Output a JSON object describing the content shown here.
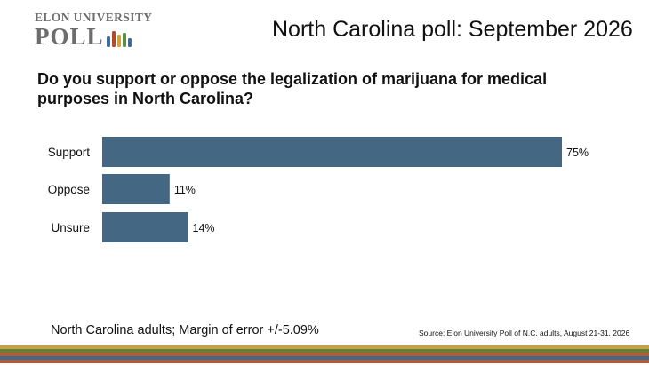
{
  "logo": {
    "line1": "ELON UNIVERSITY",
    "line2": "POLL"
  },
  "header": {
    "title": "North Carolina poll: September 2026"
  },
  "question": "Do you support or oppose the legalization of marijuana for medical purposes in North Carolina?",
  "chart_data": {
    "type": "bar",
    "orientation": "horizontal",
    "categories": [
      "Support",
      "Oppose",
      "Unsure"
    ],
    "values": [
      75,
      11,
      14
    ],
    "value_labels": [
      "75%",
      "11%",
      "14%"
    ],
    "xlim": [
      0,
      75
    ],
    "grid": false,
    "bar_color": "#446783"
  },
  "footer": {
    "note": "North Carolina adults; Margin of error +/-5.09%",
    "source": "Source: Elon University Poll of N.C. adults, August 21-31. 2026"
  },
  "colors": {
    "bar": "#446783",
    "logo_bars": [
      "#3f6b9c",
      "#b04a2e",
      "#d3a03a",
      "#5e8f3f",
      "#3f6b9c"
    ],
    "stripes": [
      "#c7a23e",
      "#5f7f3c",
      "#b85a33",
      "#3e6a8f",
      "#b85a33"
    ]
  }
}
